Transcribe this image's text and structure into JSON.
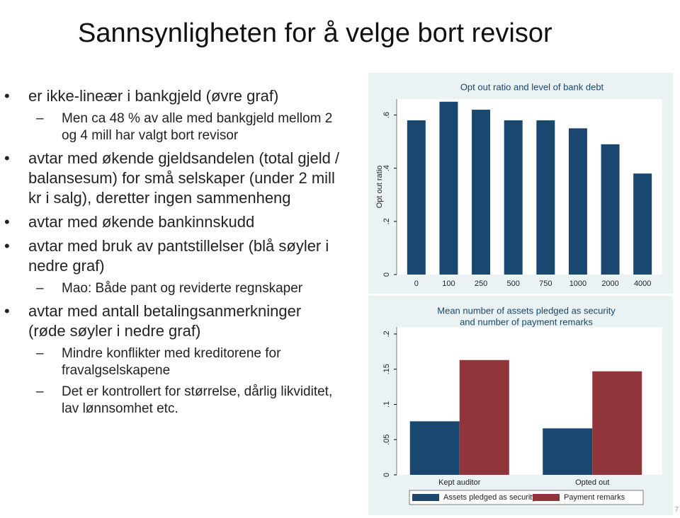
{
  "slide": {
    "title": "Sannsynligheten for å velge bort revisor",
    "bullets": [
      {
        "text": "er ikke-lineær i bankgjeld (øvre graf)",
        "sub": [
          "Men ca 48 % av alle med bankgjeld mellom 2 og 4 mill har valgt bort revisor"
        ]
      },
      {
        "text": "avtar med økende gjeldsandelen (total gjeld / balansesum) for små selskaper (under 2 mill kr i salg), deretter ingen sammenheng"
      },
      {
        "text": "avtar med økende bankinnskudd"
      },
      {
        "text": "avtar med bruk av pantstillelser (blå søyler i nedre graf)",
        "sub": [
          "Mao: Både pant og reviderte regnskaper"
        ]
      },
      {
        "text": "avtar med antall betalingsanmerkninger (røde søyler i nedre graf)",
        "sub": [
          "Mindre konflikter med kreditorene for fravalgselskapene",
          "Det er kontrollert for størrelse, dårlig likviditet, lav lønnsomhet etc."
        ]
      }
    ],
    "page_number": "7"
  },
  "chart_data": [
    {
      "type": "bar",
      "title": "Opt out ratio and level of bank debt",
      "y_label": "Opt out ratio",
      "categories": [
        "0",
        "100",
        "250",
        "500",
        "750",
        "1000",
        "2000",
        "4000"
      ],
      "values": [
        0.58,
        0.65,
        0.62,
        0.58,
        0.58,
        0.55,
        0.49,
        0.38
      ],
      "color": "#1a476f",
      "ylim": [
        0,
        0.66
      ],
      "yticks": [
        0,
        {
          "value": 0.2,
          "label": ".2"
        },
        {
          "value": 0.4,
          "label": ".4"
        },
        {
          "value": 0.6,
          "label": ".6"
        }
      ]
    },
    {
      "type": "grouped-bar",
      "title": [
        "Mean number of assets pledged as security",
        "and number of payment remarks"
      ],
      "categories": [
        "Kept auditor",
        "Opted out"
      ],
      "series": [
        {
          "name": "Assets pledged as security",
          "color": "#1a476f",
          "values": [
            0.076,
            0.066
          ]
        },
        {
          "name": "Payment remarks",
          "color": "#90353b",
          "values": [
            0.163,
            0.147
          ]
        }
      ],
      "ylim": [
        0,
        0.21
      ],
      "yticks": [
        0,
        {
          "value": 0.05,
          "label": ".05"
        },
        {
          "value": 0.1,
          "label": ".1"
        },
        {
          "value": 0.15,
          "label": ".15"
        },
        {
          "value": 0.2,
          "label": ".2"
        }
      ]
    }
  ]
}
